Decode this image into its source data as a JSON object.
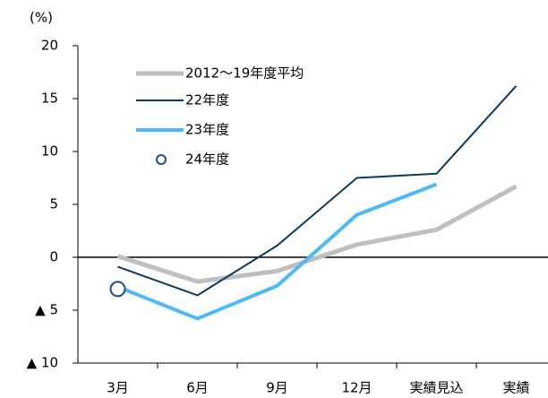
{
  "chart_data": {
    "type": "line",
    "y_unit": "(%)",
    "categories": [
      "3月",
      "6月",
      "9月",
      "12月",
      "実績見込",
      "実績"
    ],
    "series": [
      {
        "name": "2012〜19年度平均",
        "color": "#bfbfbf",
        "width": 5,
        "values": [
          0.1,
          -2.3,
          -1.3,
          1.2,
          2.6,
          6.7
        ]
      },
      {
        "name": "22年度",
        "color": "#0d3a5c",
        "width": 2,
        "values": [
          -0.9,
          -3.6,
          1.1,
          7.5,
          7.9,
          16.2
        ]
      },
      {
        "name": "23年度",
        "color": "#4db8ff",
        "width": 4,
        "values": [
          -2.8,
          -5.8,
          -2.7,
          4.0,
          6.9,
          null
        ]
      },
      {
        "name": "24年度",
        "color": "#1f4e79",
        "marker": "circle",
        "values": [
          -3.0,
          null,
          null,
          null,
          null,
          null
        ]
      }
    ],
    "ylim": [
      -10,
      20
    ],
    "yticks": [
      {
        "value": -10,
        "label": "▲ 10"
      },
      {
        "value": -5,
        "label": "▲ 5"
      },
      0,
      5,
      10,
      15,
      20
    ],
    "legend": "upper left"
  }
}
